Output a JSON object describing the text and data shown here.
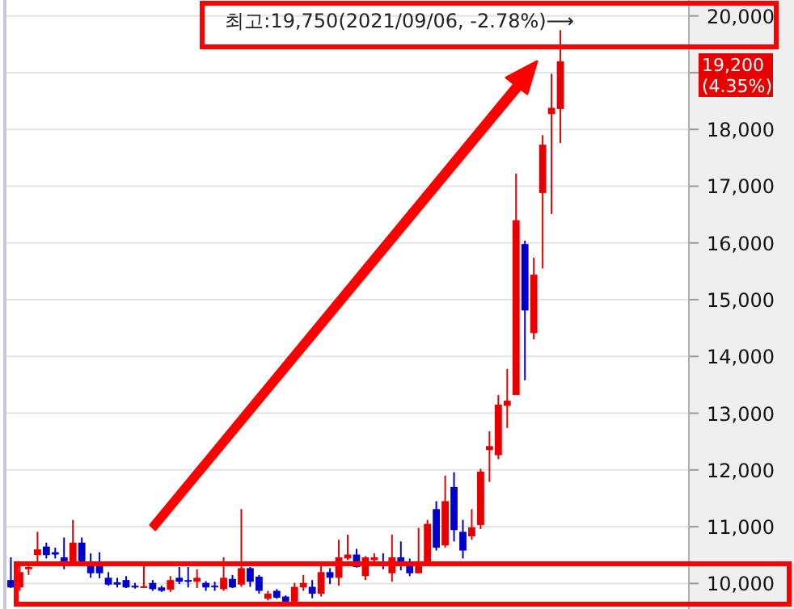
{
  "chart_data": {
    "type": "candlestick",
    "categories": [
      null,
      null,
      null,
      null,
      null,
      null,
      null,
      null,
      null,
      null,
      null,
      null,
      null,
      null,
      null,
      null,
      null,
      null,
      null,
      null,
      null,
      null,
      null,
      null,
      null,
      null,
      null,
      null,
      null,
      null,
      null,
      null,
      null,
      null,
      null,
      null,
      null,
      null,
      null,
      null,
      null,
      null,
      null,
      null,
      null,
      null,
      null,
      null,
      null,
      null,
      null,
      null,
      null,
      null,
      null,
      null,
      null,
      null,
      null,
      null,
      null,
      null,
      null,
      null,
      null,
      null,
      null,
      null,
      null,
      null,
      null,
      null,
      null,
      null,
      null,
      null,
      null
    ],
    "ohlc": [
      [
        10060,
        10460,
        9920,
        9930
      ],
      [
        9930,
        10340,
        9870,
        10200
      ],
      [
        10250,
        10340,
        10150,
        10290
      ],
      [
        10500,
        10910,
        10340,
        10600
      ],
      [
        10650,
        10720,
        10440,
        10500
      ],
      [
        10550,
        10630,
        10440,
        10510
      ],
      [
        10460,
        10810,
        10250,
        10390
      ],
      [
        10390,
        11120,
        10340,
        10720
      ],
      [
        10720,
        10810,
        10340,
        10390
      ],
      [
        10340,
        10530,
        10100,
        10180
      ],
      [
        10320,
        10550,
        10090,
        10180
      ],
      [
        10100,
        10200,
        9960,
        9980
      ],
      [
        10020,
        10100,
        9930,
        9980
      ],
      [
        10060,
        10130,
        9920,
        9930
      ],
      [
        9960,
        10010,
        9910,
        9930
      ],
      [
        9930,
        10340,
        9920,
        9950
      ],
      [
        10010,
        10060,
        9870,
        9900
      ],
      [
        9930,
        9960,
        9850,
        9870
      ],
      [
        9890,
        10130,
        9850,
        10060
      ],
      [
        10100,
        10290,
        9990,
        10030
      ],
      [
        10060,
        10290,
        9930,
        10030
      ],
      [
        10030,
        10250,
        9920,
        10100
      ],
      [
        10010,
        10040,
        9870,
        9930
      ],
      [
        9960,
        10030,
        9870,
        9940
      ],
      [
        9900,
        10460,
        9870,
        10100
      ],
      [
        10080,
        10150,
        9920,
        9930
      ],
      [
        9980,
        11310,
        9940,
        10270
      ],
      [
        10270,
        10290,
        9940,
        10030
      ],
      [
        10120,
        10150,
        9820,
        9870
      ],
      [
        9730,
        9870,
        9700,
        9820
      ],
      [
        9870,
        9900,
        9730,
        9750
      ],
      [
        9770,
        9790,
        9660,
        9680
      ],
      [
        9680,
        10010,
        9660,
        9940
      ],
      [
        9930,
        10150,
        9870,
        10010
      ],
      [
        9940,
        10060,
        9740,
        9820
      ],
      [
        9820,
        10340,
        9770,
        10200
      ],
      [
        10200,
        10270,
        9990,
        10100
      ],
      [
        10100,
        10770,
        9960,
        10460
      ],
      [
        10440,
        10860,
        10410,
        10510
      ],
      [
        10510,
        10610,
        10280,
        10290
      ],
      [
        10130,
        10480,
        10060,
        10460
      ],
      [
        10410,
        10530,
        10340,
        10460
      ],
      [
        10360,
        10530,
        10250,
        10310
      ],
      [
        10180,
        10860,
        10030,
        10460
      ],
      [
        10460,
        10740,
        10230,
        10340
      ],
      [
        10320,
        10440,
        10130,
        10180
      ],
      [
        10180,
        10980,
        10180,
        10360
      ],
      [
        10360,
        11120,
        10340,
        11050
      ],
      [
        11310,
        11450,
        10580,
        10630
      ],
      [
        10670,
        11900,
        10630,
        11450
      ],
      [
        11700,
        11960,
        10740,
        10940
      ],
      [
        10910,
        11120,
        10440,
        10580
      ],
      [
        10830,
        11310,
        10770,
        10990
      ],
      [
        11030,
        12020,
        10960,
        11970
      ],
      [
        12350,
        12680,
        11790,
        12420
      ],
      [
        12260,
        13320,
        12190,
        13150
      ],
      [
        13130,
        13780,
        12740,
        13220
      ],
      [
        13320,
        17220,
        13320,
        16400
      ],
      [
        15980,
        16040,
        13580,
        14810
      ],
      [
        14410,
        15740,
        14300,
        15440
      ],
      [
        16880,
        17900,
        15550,
        17730
      ],
      [
        18270,
        18980,
        16510,
        18380
      ],
      [
        18360,
        19750,
        17760,
        19200
      ],
      null,
      null,
      null,
      null,
      null,
      null,
      null,
      null,
      null,
      null,
      null,
      null,
      null,
      null
    ],
    "colors": [
      "#0000cc",
      "#e60000",
      "#e60000",
      "#e60000",
      "#0000cc",
      "#0000cc",
      "#0000cc",
      "#e60000",
      "#0000cc",
      "#0000cc",
      "#0000cc",
      "#0000cc",
      "#0000cc",
      "#0000cc",
      "#0000cc",
      "#e60000",
      "#0000cc",
      "#0000cc",
      "#e60000",
      "#0000cc",
      "#0000cc",
      "#e60000",
      "#0000cc",
      "#0000cc",
      "#e60000",
      "#0000cc",
      "#e60000",
      "#0000cc",
      "#0000cc",
      "#e60000",
      "#0000cc",
      "#0000cc",
      "#e60000",
      "#e60000",
      "#0000cc",
      "#e60000",
      "#0000cc",
      "#e60000",
      "#e60000",
      "#0000cc",
      "#e60000",
      "#e60000",
      "#0000cc",
      "#e60000",
      "#0000cc",
      "#0000cc",
      "#e60000",
      "#e60000",
      "#0000cc",
      "#e60000",
      "#0000cc",
      "#0000cc",
      "#e60000",
      "#e60000",
      "#e60000",
      "#e60000",
      "#e60000",
      "#e60000",
      "#0000cc",
      "#e60000",
      "#e60000",
      "#e60000",
      "#e60000",
      null,
      null,
      null,
      null,
      null,
      null,
      null,
      null,
      null,
      null,
      null,
      null,
      null,
      null
    ],
    "ylim": [
      9550,
      20280
    ],
    "yticks": [
      {
        "value": 10000,
        "label": "10,000"
      },
      {
        "value": 11000,
        "label": "11,000"
      },
      {
        "value": 12000,
        "label": "12,000"
      },
      {
        "value": 13000,
        "label": "13,000"
      },
      {
        "value": 14000,
        "label": "14,000"
      },
      {
        "value": 15000,
        "label": "15,000"
      },
      {
        "value": 16000,
        "label": "16,000"
      },
      {
        "value": 17000,
        "label": "17,000"
      },
      {
        "value": 18000,
        "label": "18,000"
      },
      {
        "value": 19000,
        "label": null
      },
      {
        "value": 20000,
        "label": "20,000"
      }
    ],
    "grid": "y",
    "annotations": [
      "최고:19,750(2021/09/06, -2.78%)⟶",
      "19,200 (4.35%)"
    ]
  }
}
